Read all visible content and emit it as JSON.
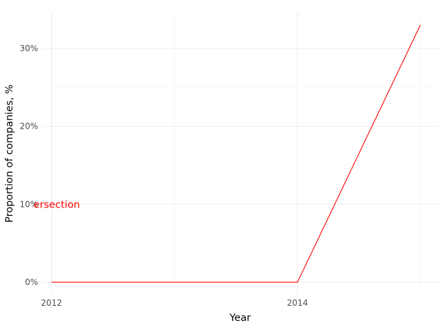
{
  "chart_data": {
    "type": "line",
    "title": "",
    "xlabel": "Year",
    "ylabel": "Proportion of companies, %",
    "x": [
      2012,
      2014,
      2015
    ],
    "series": [
      {
        "values": [
          0,
          0,
          33
        ],
        "color": "#ff0000"
      }
    ],
    "xlim": [
      2011.93,
      2015.15
    ],
    "ylim": [
      -1.5,
      34.6
    ],
    "x_ticks": [
      2012,
      2014
    ],
    "x_tick_labels": [
      "2012",
      "2014"
    ],
    "y_ticks": [
      0,
      10,
      20,
      30
    ],
    "y_tick_labels": [
      "0%",
      "10%",
      "20%",
      "30%"
    ],
    "y_minor_ticks": [
      5,
      15,
      25
    ],
    "x_minor_ticks": [
      2013,
      2015
    ],
    "grid": true,
    "legend": "none",
    "annotations": [
      {
        "text": "ersection",
        "x": 2012,
        "y": 10,
        "color": "#ff0000"
      }
    ]
  }
}
